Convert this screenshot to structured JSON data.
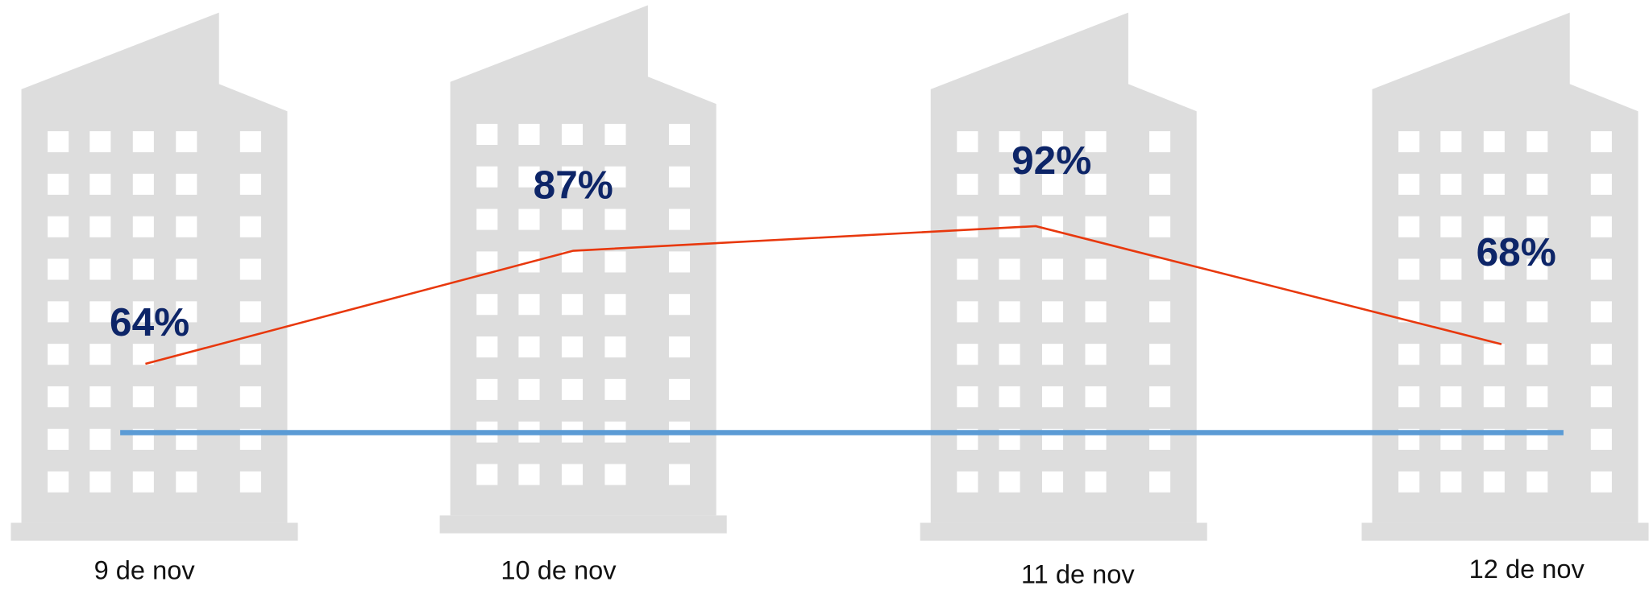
{
  "chart_data": {
    "type": "line",
    "categories": [
      "9 de nov",
      "10 de nov",
      "11 de nov",
      "12 de nov"
    ],
    "values": [
      64,
      87,
      92,
      68
    ],
    "value_labels": [
      "64%",
      "87%",
      "92%",
      "68%"
    ],
    "color": "#e8380d",
    "reference_line": {
      "value": 50,
      "color": "#5b9bd5"
    },
    "ylim": [
      18,
      138
    ]
  }
}
